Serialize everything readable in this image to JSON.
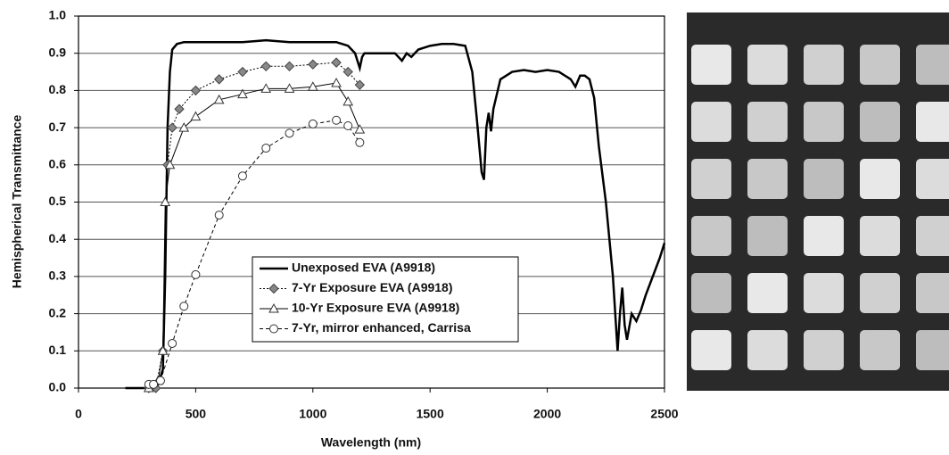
{
  "chart_data": {
    "type": "line",
    "x_label": "Wavelength (nm)",
    "y_label": "Hemispherical Transmittance",
    "xlim": [
      0,
      2500
    ],
    "ylim": [
      0,
      1.0
    ],
    "xticks": [
      0,
      500,
      1000,
      1500,
      2000,
      2500
    ],
    "yticks": [
      {
        "value": 0,
        "label": "0.0"
      },
      0.1,
      0.2,
      0.3,
      0.4,
      0.5,
      0.6,
      0.7,
      0.8,
      0.9,
      {
        "value": 1.0,
        "label": "1.0"
      }
    ],
    "grid": true,
    "legend": "center",
    "series": [
      {
        "name": "Unexposed EVA (A9918)",
        "color": "#000000",
        "marker": "none",
        "dash": "solid",
        "x": [
          200,
          300,
          340,
          360,
          370,
          380,
          390,
          400,
          420,
          450,
          500,
          600,
          700,
          800,
          900,
          1000,
          1100,
          1150,
          1180,
          1200,
          1210,
          1220,
          1250,
          1300,
          1350,
          1380,
          1400,
          1420,
          1450,
          1500,
          1550,
          1600,
          1650,
          1680,
          1700,
          1720,
          1730,
          1740,
          1750,
          1760,
          1770,
          1800,
          1850,
          1900,
          1950,
          2000,
          2050,
          2100,
          2120,
          2140,
          2160,
          2180,
          2200,
          2220,
          2250,
          2280,
          2300,
          2310,
          2320,
          2330,
          2340,
          2360,
          2380,
          2400,
          2420,
          2450,
          2480,
          2500
        ],
        "values": [
          0,
          0,
          0.01,
          0.05,
          0.3,
          0.7,
          0.85,
          0.91,
          0.925,
          0.93,
          0.93,
          0.93,
          0.93,
          0.935,
          0.93,
          0.93,
          0.93,
          0.92,
          0.9,
          0.86,
          0.89,
          0.9,
          0.9,
          0.9,
          0.9,
          0.88,
          0.9,
          0.89,
          0.91,
          0.92,
          0.925,
          0.925,
          0.92,
          0.85,
          0.72,
          0.58,
          0.56,
          0.7,
          0.74,
          0.69,
          0.75,
          0.83,
          0.85,
          0.855,
          0.85,
          0.855,
          0.85,
          0.83,
          0.81,
          0.84,
          0.84,
          0.83,
          0.78,
          0.65,
          0.5,
          0.3,
          0.1,
          0.2,
          0.27,
          0.17,
          0.13,
          0.2,
          0.18,
          0.21,
          0.25,
          0.3,
          0.35,
          0.39
        ]
      },
      {
        "name": "7-Yr Exposure EVA (A9918)",
        "color": "#000000",
        "marker": "diamond",
        "dash": "dotted",
        "x": [
          300,
          330,
          360,
          380,
          400,
          430,
          500,
          600,
          700,
          800,
          900,
          1000,
          1100,
          1150,
          1200
        ],
        "values": [
          0,
          0,
          0.1,
          0.6,
          0.7,
          0.75,
          0.8,
          0.83,
          0.85,
          0.865,
          0.865,
          0.87,
          0.875,
          0.85,
          0.815
        ]
      },
      {
        "name": "10-Yr Exposure EVA (A9918)",
        "color": "#000000",
        "marker": "triangle",
        "dash": "solid",
        "x": [
          300,
          340,
          360,
          370,
          390,
          450,
          500,
          600,
          700,
          800,
          900,
          1000,
          1100,
          1150,
          1200
        ],
        "values": [
          0,
          0.02,
          0.1,
          0.5,
          0.6,
          0.7,
          0.73,
          0.775,
          0.79,
          0.805,
          0.805,
          0.81,
          0.82,
          0.77,
          0.695
        ]
      },
      {
        "name": "7-Yr, mirror enhanced, Carrisa",
        "color": "#000000",
        "marker": "circle",
        "dash": "dashed",
        "x": [
          300,
          320,
          350,
          400,
          450,
          500,
          600,
          700,
          800,
          900,
          1000,
          1100,
          1150,
          1200
        ],
        "values": [
          0.01,
          0.01,
          0.02,
          0.12,
          0.22,
          0.305,
          0.465,
          0.57,
          0.645,
          0.685,
          0.71,
          0.72,
          0.705,
          0.66
        ]
      }
    ]
  }
}
